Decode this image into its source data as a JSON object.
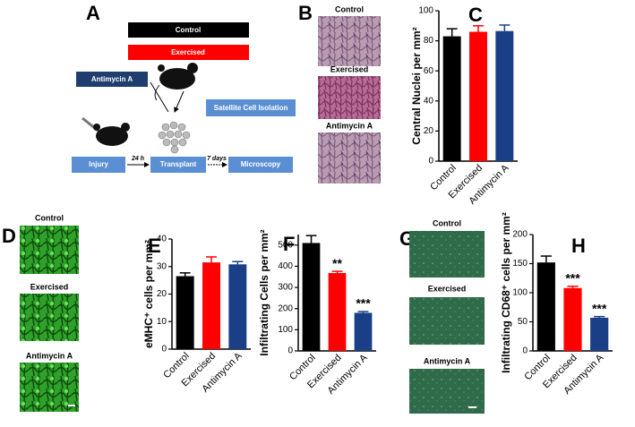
{
  "panels": {
    "A": {
      "letter": "A",
      "groups": [
        "Control",
        "Exercised"
      ],
      "treatment": "Antimycin A",
      "isolation": "Satellite Cell Isolation",
      "steps": [
        "Injury",
        "Transplant",
        "Microscopy"
      ],
      "intervals": [
        "24 h",
        "7 days"
      ]
    },
    "B": {
      "letter": "B",
      "images": [
        "Control",
        "Exercised",
        "Antimycin A"
      ]
    },
    "D": {
      "letter": "D",
      "images": [
        "Control",
        "Exercised",
        "Antimycin A"
      ]
    },
    "G": {
      "letter": "G",
      "images": [
        "Control",
        "Exercised",
        "Antimycin A"
      ]
    }
  },
  "chart_data": [
    {
      "type": "bar",
      "panel": "C",
      "ylabel": "Central Nuclei per mm²",
      "categories": [
        "Control",
        "Exercised",
        "Antimycin A"
      ],
      "colors": [
        "#000000",
        "#ff0000",
        "#1a3f87"
      ],
      "values": [
        83,
        86,
        86.5
      ],
      "errors": [
        5,
        4,
        4
      ],
      "ylim": [
        0,
        100
      ],
      "yticks": [
        0,
        20,
        40,
        60,
        80,
        100
      ]
    },
    {
      "type": "bar",
      "panel": "E",
      "ylabel": "eMHC⁺ cells per mm²",
      "categories": [
        "Control",
        "Exercised",
        "Antimycin A"
      ],
      "colors": [
        "#000000",
        "#ff0000",
        "#1a3f87"
      ],
      "values": [
        26.5,
        31.5,
        30.8
      ],
      "errors": [
        1.2,
        2,
        1
      ],
      "ylim": [
        0,
        40
      ],
      "yticks": [
        0,
        10,
        20,
        30,
        40
      ]
    },
    {
      "type": "bar",
      "panel": "F",
      "ylabel": "Infiltrating Cells per mm²",
      "categories": [
        "Control",
        "Exercised",
        "Antimycin A"
      ],
      "colors": [
        "#000000",
        "#ff0000",
        "#1a3f87"
      ],
      "values": [
        510,
        368,
        180
      ],
      "errors": [
        35,
        8,
        6
      ],
      "annotations": [
        null,
        "**",
        "***"
      ],
      "ylim": [
        0,
        550
      ],
      "yticks": [
        0,
        100,
        200,
        300,
        400,
        500
      ]
    },
    {
      "type": "bar",
      "panel": "H",
      "ylabel": "Infiltrating CD68⁺ cells per mm²",
      "categories": [
        "Control",
        "Exercised",
        "Antimycin A"
      ],
      "colors": [
        "#000000",
        "#ff0000",
        "#1a3f87"
      ],
      "values": [
        152,
        108,
        57
      ],
      "errors": [
        11,
        3,
        2
      ],
      "annotations": [
        null,
        "***",
        "***"
      ],
      "ylim": [
        0,
        200
      ],
      "yticks": [
        0,
        50,
        100,
        150,
        200
      ]
    }
  ]
}
